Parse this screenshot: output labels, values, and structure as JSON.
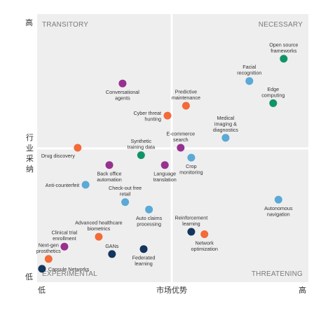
{
  "colors": {
    "orange": "#f26b38",
    "teal": "#11936a",
    "blue": "#5aa9d6",
    "purple": "#97318f",
    "navy": "#13355e",
    "panel": "#eeeeee",
    "divider": "#ffffff"
  },
  "chart_data": {
    "type": "scatter",
    "title": "",
    "xlabel": "市场优势",
    "ylabel": "行业采纳",
    "x_ticks": [
      "低",
      "高"
    ],
    "y_ticks": [
      "高",
      "低"
    ],
    "xlim": [
      0,
      100
    ],
    "ylim": [
      0,
      100
    ],
    "x_divider": 50,
    "y_divider": 50,
    "quadrants": {
      "top_left": "TRANSITORY",
      "top_right": "NECESSARY",
      "bottom_left": "EXPERIMENTAL",
      "bottom_right": "THREATENING"
    },
    "grid": false,
    "legend": "none",
    "points": [
      {
        "label": [
          "Open source",
          "frameworks"
        ],
        "x": 92,
        "y": 87,
        "color": "teal",
        "label_pos": "above"
      },
      {
        "label": [
          "Facial",
          "recognition"
        ],
        "x": 79,
        "y": 78,
        "color": "blue",
        "label_pos": "above"
      },
      {
        "label": [
          "Edge",
          "computing"
        ],
        "x": 88,
        "y": 69,
        "color": "teal",
        "label_pos": "above"
      },
      {
        "label": [
          "Conversational",
          "agents"
        ],
        "x": 31,
        "y": 77,
        "color": "purple",
        "label_pos": "below"
      },
      {
        "label": [
          "Predictive",
          "maintenance"
        ],
        "x": 55,
        "y": 68,
        "color": "orange",
        "label_pos": "above"
      },
      {
        "label": [
          "Cyber threat",
          "hunting"
        ],
        "x": 48,
        "y": 64,
        "color": "orange",
        "label_pos": "left"
      },
      {
        "label": [
          "Medical",
          "imaging &",
          "diagnostics"
        ],
        "x": 70,
        "y": 55,
        "color": "blue",
        "label_pos": "above"
      },
      {
        "label": [
          "E-commerce",
          "search"
        ],
        "x": 53,
        "y": 51,
        "color": "purple",
        "label_pos": "above"
      },
      {
        "label": [
          "Synthetic",
          "training data"
        ],
        "x": 38,
        "y": 48,
        "color": "teal",
        "label_pos": "above"
      },
      {
        "label": [
          "Drug discovery"
        ],
        "x": 14,
        "y": 51,
        "color": "orange",
        "label_pos": "left-below"
      },
      {
        "label": [
          "Crop",
          "monitoring"
        ],
        "x": 57,
        "y": 47,
        "color": "blue",
        "label_pos": "below"
      },
      {
        "label": [
          "Back office",
          "automation"
        ],
        "x": 26,
        "y": 44,
        "color": "purple",
        "label_pos": "below"
      },
      {
        "label": [
          "Language",
          "translation"
        ],
        "x": 47,
        "y": 44,
        "color": "purple",
        "label_pos": "below"
      },
      {
        "label": [
          "Anti-counterfeit"
        ],
        "x": 17,
        "y": 36,
        "color": "blue",
        "label_pos": "left"
      },
      {
        "label": [
          "Check-out free",
          "retail"
        ],
        "x": 32,
        "y": 29,
        "color": "blue",
        "label_pos": "above"
      },
      {
        "label": [
          "Autonomous",
          "navigation"
        ],
        "x": 90,
        "y": 30,
        "color": "blue",
        "label_pos": "below"
      },
      {
        "label": [
          "Advanced healthcare",
          "biometrics"
        ],
        "x": 22,
        "y": 15,
        "color": "orange",
        "label_pos": "above"
      },
      {
        "label": [
          "Auto claims",
          "processing"
        ],
        "x": 41,
        "y": 26,
        "color": "blue",
        "label_pos": "below"
      },
      {
        "label": [
          "Reinforcement",
          "learning"
        ],
        "x": 57,
        "y": 17,
        "color": "navy",
        "label_pos": "above"
      },
      {
        "label": [
          "Network",
          "optimization"
        ],
        "x": 62,
        "y": 16,
        "color": "orange",
        "label_pos": "below"
      },
      {
        "label": [
          "Clinical trial",
          "enrollment"
        ],
        "x": 9,
        "y": 11,
        "color": "purple",
        "label_pos": "above"
      },
      {
        "label": [
          "GANs"
        ],
        "x": 27,
        "y": 8,
        "color": "navy",
        "label_pos": "above"
      },
      {
        "label": [
          "Federated",
          "learning"
        ],
        "x": 39,
        "y": 10,
        "color": "navy",
        "label_pos": "below"
      },
      {
        "label": [
          "Next-gen",
          "prosthetics"
        ],
        "x": 3,
        "y": 6,
        "color": "orange",
        "label_pos": "above"
      },
      {
        "label": [
          "Capsule Networks"
        ],
        "x": 0.5,
        "y": 2,
        "color": "navy",
        "label_pos": "right"
      }
    ]
  }
}
